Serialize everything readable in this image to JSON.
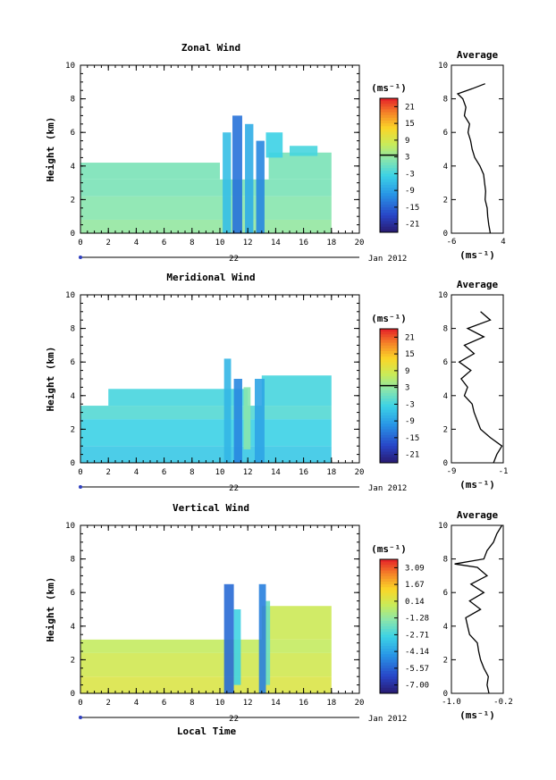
{
  "figure": {
    "xlabel_bottom": "Local Time",
    "date_label": "Jan 2012",
    "day_label": "22"
  },
  "chart_data": [
    {
      "type": "heatmap",
      "title": "Zonal Wind",
      "xlabel": "",
      "ylabel": "Height (km)",
      "xlim": [
        0,
        20
      ],
      "ylim": [
        0,
        10
      ],
      "xticks": [
        "0",
        "2",
        "4",
        "6",
        "8",
        "10",
        "12",
        "14",
        "16",
        "18",
        "20"
      ],
      "yticks": [
        "0",
        "2",
        "4",
        "6",
        "8",
        "10"
      ],
      "colorbar": {
        "unit": "(ms⁻¹)",
        "ticks": [
          "21",
          "15",
          "9",
          "3",
          "-3",
          "-9",
          "-15",
          "-21"
        ],
        "range": [
          -24,
          24
        ],
        "zero_line": 3
      },
      "cells": [
        {
          "x": [
            0,
            18
          ],
          "y": [
            0,
            0.8
          ],
          "value": 3
        },
        {
          "x": [
            0,
            18
          ],
          "y": [
            0.8,
            2.2
          ],
          "value": 2
        },
        {
          "x": [
            0,
            18
          ],
          "y": [
            2.2,
            3.2
          ],
          "value": 1
        },
        {
          "x": [
            0,
            10
          ],
          "y": [
            3.2,
            4.2
          ],
          "value": 1
        },
        {
          "x": [
            13.5,
            18
          ],
          "y": [
            3.2,
            4.8
          ],
          "value": 1
        },
        {
          "x": [
            10.2,
            10.8
          ],
          "y": [
            0,
            6
          ],
          "value": -6
        },
        {
          "x": [
            10.9,
            11.6
          ],
          "y": [
            0,
            7
          ],
          "value": -14
        },
        {
          "x": [
            11.8,
            12.4
          ],
          "y": [
            0,
            6.5
          ],
          "value": -8
        },
        {
          "x": [
            12.6,
            13.2
          ],
          "y": [
            0,
            5.5
          ],
          "value": -12
        },
        {
          "x": [
            13.3,
            14.5
          ],
          "y": [
            4.5,
            6
          ],
          "value": -4
        },
        {
          "x": [
            15,
            17
          ],
          "y": [
            4.6,
            5.2
          ],
          "value": -3
        }
      ],
      "average": {
        "xlim": [
          -6,
          4
        ],
        "xticks": [
          "-6",
          "4"
        ],
        "unit": "(ms⁻¹)",
        "height": [
          0,
          0.5,
          1,
          1.5,
          2,
          2.5,
          3,
          3.5,
          4,
          4.5,
          5,
          5.5,
          6,
          6.5,
          7,
          7.5,
          8,
          8.3,
          8.6,
          8.9
        ],
        "value": [
          1.5,
          1.2,
          1.0,
          0.9,
          0.5,
          0.6,
          0.4,
          0.2,
          -0.5,
          -1.5,
          -2.0,
          -2.3,
          -2.8,
          -2.5,
          -3.5,
          -3.2,
          -3.8,
          -4.8,
          -2.0,
          0.5
        ]
      }
    },
    {
      "type": "heatmap",
      "title": "Meridional Wind",
      "xlabel": "",
      "ylabel": "Height (km)",
      "xlim": [
        0,
        20
      ],
      "ylim": [
        0,
        10
      ],
      "xticks": [
        "0",
        "2",
        "4",
        "6",
        "8",
        "10",
        "12",
        "14",
        "16",
        "18",
        "20"
      ],
      "yticks": [
        "0",
        "2",
        "4",
        "6",
        "8",
        "10"
      ],
      "colorbar": {
        "unit": "(ms⁻¹)",
        "ticks": [
          "21",
          "15",
          "9",
          "3",
          "-3",
          "-9",
          "-15",
          "-21"
        ],
        "range": [
          -24,
          24
        ],
        "zero_line": 3
      },
      "cells": [
        {
          "x": [
            0,
            18
          ],
          "y": [
            0,
            1.0
          ],
          "value": -5
        },
        {
          "x": [
            0,
            18
          ],
          "y": [
            1.0,
            2.6
          ],
          "value": -4
        },
        {
          "x": [
            0,
            18
          ],
          "y": [
            2.6,
            3.4
          ],
          "value": -2
        },
        {
          "x": [
            2,
            12
          ],
          "y": [
            3.4,
            4.4
          ],
          "value": -3
        },
        {
          "x": [
            13,
            18
          ],
          "y": [
            3.4,
            5.2
          ],
          "value": -3
        },
        {
          "x": [
            10.3,
            10.8
          ],
          "y": [
            0,
            6.2
          ],
          "value": -7
        },
        {
          "x": [
            11.0,
            11.6
          ],
          "y": [
            0,
            5.0
          ],
          "value": -12
        },
        {
          "x": [
            11.7,
            12.2
          ],
          "y": [
            0.8,
            4.5
          ],
          "value": 2
        },
        {
          "x": [
            12.5,
            13.2
          ],
          "y": [
            0,
            5.0
          ],
          "value": -9
        }
      ],
      "average": {
        "xlim": [
          -9,
          -1
        ],
        "xticks": [
          "-9",
          "-1"
        ],
        "unit": "(ms⁻¹)",
        "height": [
          0,
          0.5,
          1,
          1.5,
          2,
          2.5,
          3,
          3.5,
          4,
          4.5,
          5,
          5.5,
          6,
          6.5,
          7,
          7.5,
          8,
          8.5,
          9
        ],
        "value": [
          -2.5,
          -2.0,
          -1.2,
          -3.0,
          -4.5,
          -5.0,
          -5.5,
          -5.8,
          -7.0,
          -6.5,
          -7.5,
          -6.0,
          -7.8,
          -5.5,
          -7.0,
          -4.0,
          -6.5,
          -3.0,
          -4.5
        ]
      }
    },
    {
      "type": "heatmap",
      "title": "Vertical Wind",
      "xlabel": "Local Time",
      "ylabel": "Height (km)",
      "xlim": [
        0,
        20
      ],
      "ylim": [
        0,
        10
      ],
      "xticks": [
        "0",
        "2",
        "4",
        "6",
        "8",
        "10",
        "12",
        "14",
        "16",
        "18",
        "20"
      ],
      "yticks": [
        "0",
        "2",
        "4",
        "6",
        "8",
        "10"
      ],
      "colorbar": {
        "unit": "(ms⁻¹)",
        "ticks": [
          "3.09",
          "1.67",
          "0.14",
          "-1.28",
          "-2.71",
          "-4.14",
          "-5.57",
          "-7.00"
        ],
        "range": [
          -7.7,
          3.8
        ]
      },
      "cells": [
        {
          "x": [
            0,
            18
          ],
          "y": [
            0,
            1.0
          ],
          "value": 0.4
        },
        {
          "x": [
            0,
            18
          ],
          "y": [
            1.0,
            2.4
          ],
          "value": 0.1
        },
        {
          "x": [
            0,
            18
          ],
          "y": [
            2.4,
            3.2
          ],
          "value": -0.2
        },
        {
          "x": [
            13,
            18
          ],
          "y": [
            3.2,
            5.2
          ],
          "value": 0.0
        },
        {
          "x": [
            10.3,
            11.0
          ],
          "y": [
            0,
            6.5
          ],
          "value": -5.5
        },
        {
          "x": [
            11.0,
            11.5
          ],
          "y": [
            0.5,
            5.0
          ],
          "value": -2.8
        },
        {
          "x": [
            12.8,
            13.3
          ],
          "y": [
            0,
            6.5
          ],
          "value": -5.0
        },
        {
          "x": [
            13.3,
            13.6
          ],
          "y": [
            0.5,
            5.5
          ],
          "value": -2.0
        }
      ],
      "average": {
        "xlim": [
          -1.0,
          -0.2
        ],
        "xticks": [
          "-1.0",
          "-0.2"
        ],
        "unit": "(ms⁻¹)",
        "height": [
          0,
          0.5,
          1,
          1.5,
          2,
          2.5,
          3,
          3.5,
          4,
          4.5,
          5,
          5.5,
          6,
          6.5,
          7,
          7.5,
          7.7,
          8,
          8.5,
          9,
          9.5,
          10
        ],
        "value": [
          -0.42,
          -0.45,
          -0.43,
          -0.5,
          -0.55,
          -0.58,
          -0.6,
          -0.72,
          -0.75,
          -0.78,
          -0.55,
          -0.72,
          -0.5,
          -0.7,
          -0.45,
          -0.6,
          -0.95,
          -0.5,
          -0.45,
          -0.35,
          -0.3,
          -0.22
        ]
      }
    }
  ]
}
